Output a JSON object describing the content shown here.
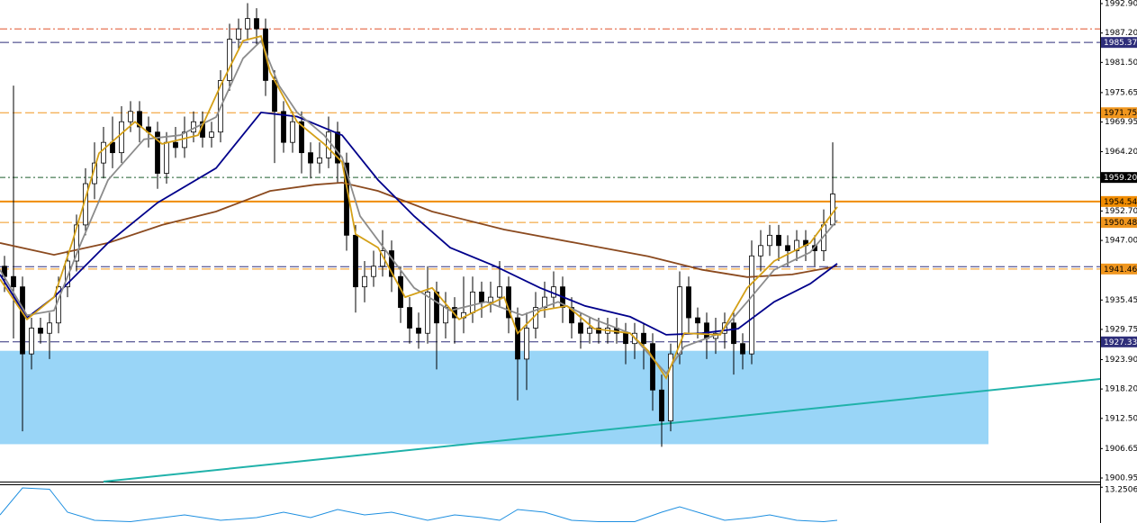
{
  "chart_data": {
    "type": "candlestick",
    "xlim": [
      -0.5,
      121.7
    ],
    "ylim": [
      1900.25,
      1993.6
    ],
    "yticks": [
      {
        "value": 1992.9,
        "label": "1992.90"
      },
      {
        "value": 1987.2,
        "label": "1987.20"
      },
      {
        "value": 1981.5,
        "label": "1981.50"
      },
      {
        "value": 1975.65,
        "label": "1975.65"
      },
      {
        "value": 1969.95,
        "label": "1969.95"
      },
      {
        "value": 1964.2,
        "label": "1964.20"
      },
      {
        "value": 1952.7,
        "label": "1952.70"
      },
      {
        "value": 1947,
        "label": "1947.00"
      },
      {
        "value": 1935.45,
        "label": "1935.45"
      },
      {
        "value": 1929.75,
        "label": "1929.75"
      },
      {
        "value": 1923.9,
        "label": "1923.90"
      },
      {
        "value": 1918.2,
        "label": "1918.20"
      },
      {
        "value": 1912.5,
        "label": "1912.50"
      },
      {
        "value": 1906.65,
        "label": "1906.65"
      },
      {
        "value": 1900.95,
        "label": "1900.95"
      }
    ],
    "up_color": "#ffffff",
    "down_color": "#000000",
    "open": [
      1942,
      1940,
      1938,
      1925,
      1930,
      1929,
      1931,
      1938,
      1943,
      1950,
      1958,
      1962,
      1966,
      1964,
      1970,
      1972,
      1969,
      1968,
      1960,
      1966,
      1965,
      1968,
      1970,
      1967,
      1968,
      1978,
      1986,
      1988,
      1990,
      1988,
      1978,
      1972,
      1966,
      1970,
      1964,
      1962,
      1963,
      1968,
      1962,
      1948,
      1938,
      1940,
      1942,
      1945,
      1940,
      1934,
      1930,
      1929,
      1937,
      1931,
      1934,
      1932,
      1933,
      1937,
      1935,
      1936,
      1938,
      1932,
      1924,
      1930,
      1934,
      1936,
      1938,
      1934,
      1931,
      1929,
      1930,
      1929,
      1930,
      1929,
      1927,
      1929,
      1927,
      1918,
      1912,
      1925,
      1938,
      1932,
      1931,
      1928,
      1929,
      1931,
      1927,
      1925,
      1944,
      1946,
      1948,
      1946,
      1945,
      1947,
      1946,
      1945,
      1950
    ],
    "high": [
      1944,
      1977,
      1940,
      1932,
      1932,
      1933,
      1940,
      1945,
      1952,
      1961,
      1966,
      1969,
      1971,
      1973,
      1974,
      1974,
      1971,
      1970,
      1968,
      1969,
      1971,
      1972,
      1972,
      1970,
      1980,
      1989,
      1990,
      1993,
      1992,
      1990,
      1980,
      1974,
      1972,
      1972,
      1966,
      1966,
      1971,
      1970,
      1964,
      1950,
      1943,
      1945,
      1949,
      1947,
      1942,
      1936,
      1933,
      1942,
      1939,
      1937,
      1936,
      1940,
      1940,
      1939,
      1939,
      1943,
      1940,
      1934,
      1933,
      1937,
      1939,
      1941,
      1940,
      1936,
      1933,
      1932,
      1932,
      1932,
      1932,
      1931,
      1931,
      1931,
      1929,
      1921,
      1927,
      1941,
      1940,
      1934,
      1933,
      1932,
      1933,
      1933,
      1929,
      1947,
      1949,
      1950,
      1950,
      1948,
      1949,
      1949,
      1948,
      1953,
      1966
    ],
    "low": [
      1937,
      1928,
      1910,
      1922,
      1927,
      1924,
      1929,
      1936,
      1941,
      1948,
      1955,
      1959,
      1961,
      1962,
      1968,
      1966,
      1965,
      1957,
      1958,
      1963,
      1963,
      1966,
      1965,
      1965,
      1966,
      1976,
      1984,
      1986,
      1985,
      1975,
      1962,
      1964,
      1964,
      1960,
      1959,
      1960,
      1961,
      1958,
      1945,
      1933,
      1935,
      1938,
      1940,
      1937,
      1931,
      1927,
      1926,
      1927,
      1922,
      1928,
      1927,
      1929,
      1931,
      1932,
      1933,
      1934,
      1929,
      1916,
      1918,
      1928,
      1932,
      1934,
      1931,
      1928,
      1926,
      1927,
      1927,
      1927,
      1927,
      1923,
      1924,
      1922,
      1914,
      1907,
      1910,
      1923,
      1929,
      1928,
      1924,
      1925,
      1926,
      1921,
      1922,
      1923,
      1941,
      1944,
      1943,
      1942,
      1943,
      1943,
      1942,
      1943,
      1950
    ],
    "close": [
      1940,
      1938,
      1925,
      1930,
      1929,
      1931,
      1938,
      1943,
      1950,
      1958,
      1962,
      1966,
      1964,
      1970,
      1972,
      1969,
      1968,
      1960,
      1966,
      1965,
      1968,
      1970,
      1967,
      1968,
      1978,
      1986,
      1988,
      1990,
      1988,
      1978,
      1972,
      1966,
      1970,
      1964,
      1962,
      1963,
      1968,
      1962,
      1948,
      1938,
      1940,
      1942,
      1945,
      1940,
      1934,
      1930,
      1929,
      1937,
      1931,
      1934,
      1932,
      1933,
      1937,
      1935,
      1936,
      1938,
      1932,
      1924,
      1930,
      1934,
      1936,
      1938,
      1934,
      1931,
      1929,
      1930,
      1929,
      1930,
      1929,
      1927,
      1929,
      1927,
      1918,
      1912,
      1925,
      1938,
      1932,
      1931,
      1928,
      1929,
      1931,
      1927,
      1925,
      1944,
      1946,
      1948,
      1946,
      1945,
      1947,
      1946,
      1945,
      1950,
      1956
    ],
    "series": [
      {
        "color": "#8b4a1f",
        "x": [
          -0.5,
          5.5,
          11.5,
          17.5,
          23.5,
          29.5,
          34.5,
          37.5,
          41.5,
          47.5,
          55.5,
          63.5,
          71.5,
          77.5,
          82.5,
          87.5,
          92.5
        ],
        "values": [
          1946.5,
          1944.2,
          1946.5,
          1950,
          1952.6,
          1956.6,
          1957.8,
          1958.2,
          1956.6,
          1952.6,
          1949.1,
          1946.5,
          1943.9,
          1941.3,
          1939.9,
          1940.4,
          1942
        ]
      },
      {
        "color": "#00008b",
        "x": [
          -0.5,
          2.5,
          5.5,
          11.5,
          17,
          23.5,
          28.5,
          32.5,
          37.5,
          41.5,
          45.5,
          49.5,
          54.5,
          59.5,
          64.5,
          69.5,
          73.5,
          77.5,
          81.5,
          85.5,
          89.5,
          92.5
        ],
        "values": [
          1940.4,
          1932,
          1936,
          1946.5,
          1954.3,
          1961,
          1971.8,
          1971,
          1967.4,
          1958.7,
          1951.7,
          1945.6,
          1942,
          1937.8,
          1934.3,
          1932.2,
          1928.7,
          1929,
          1929.9,
          1935.1,
          1938.6,
          1942.5
        ]
      },
      {
        "color": "#8c8c8c",
        "x": [
          -0.5,
          2.5,
          5.5,
          8.5,
          11.5,
          15.5,
          19.5,
          23.5,
          26.5,
          28.5,
          30.5,
          32.5,
          35.5,
          37.5,
          39.5,
          42.5,
          45.5,
          49.5,
          53.5,
          57.5,
          61.5,
          65.5,
          69.5,
          73.5,
          75.5,
          79.5,
          82.5,
          85.5,
          89.5,
          92.5
        ],
        "values": [
          1941.3,
          1932.5,
          1933.4,
          1946.5,
          1958.7,
          1966.6,
          1967.4,
          1970.9,
          1982.3,
          1985.7,
          1977,
          1971.8,
          1967.4,
          1963.1,
          1951.7,
          1944.7,
          1937.8,
          1933.4,
          1935.1,
          1932.5,
          1935.1,
          1931.7,
          1929,
          1921.2,
          1926.4,
          1929,
          1935.1,
          1941.3,
          1944.7,
          1950.9
        ]
      },
      {
        "color": "#d4a017",
        "x": [
          -0.5,
          2.5,
          5.5,
          7.5,
          10.5,
          14.5,
          17.5,
          21.5,
          24,
          26.5,
          28.5,
          29.5,
          32.5,
          35.5,
          37.5,
          39,
          41.5,
          44.5,
          47.5,
          50.5,
          55.5,
          57,
          59.5,
          62.5,
          65.5,
          69.5,
          71.5,
          73.5,
          75.5,
          79.5,
          82.5,
          85.5,
          89.5,
          92.5
        ],
        "values": [
          1939.5,
          1931.7,
          1936,
          1946.5,
          1963.9,
          1970,
          1965.7,
          1967.4,
          1977,
          1985.7,
          1986.6,
          1979.6,
          1970,
          1965.7,
          1962.2,
          1948.2,
          1945.6,
          1936,
          1937.8,
          1931.7,
          1936,
          1929,
          1933.4,
          1934.3,
          1929.9,
          1929,
          1925.6,
          1920.3,
          1929,
          1928.7,
          1937.8,
          1943,
          1946.5,
          1953.5
        ]
      }
    ],
    "levels": [
      {
        "value": 1988,
        "color": "#e0502a",
        "dash": "8,3,2,3",
        "show_label": false
      },
      {
        "value": 1985.37,
        "color": "#2e2e7a",
        "dash": "10,4",
        "show_label": true,
        "label_color": "#ffffff"
      },
      {
        "value": 1971.75,
        "color": "#f0961e",
        "dash": "10,4",
        "show_label": true,
        "label_color": "#000000"
      },
      {
        "value": 1959.2,
        "label": "1959.20",
        "color": "#1f5f2f",
        "dash": "6,3,2,3",
        "box_color": "#000000",
        "show_label": true,
        "label_color": "#ffffff"
      },
      {
        "value": 1954.54,
        "color": "#f08c00",
        "dash": "none",
        "width": 2,
        "show_label": true,
        "label_color": "#000000"
      },
      {
        "value": 1950.48,
        "color": "#f0961e",
        "dash": "10,4",
        "show_label": true,
        "label_color": "#000000"
      },
      {
        "value": 1941.9,
        "color": "#2e2e7a",
        "dash": "10,4",
        "show_label": false
      },
      {
        "value": 1941.46,
        "color": "#f0961e",
        "dash": "10,4",
        "show_label": true,
        "label_color": "#000000"
      },
      {
        "value": 1927.33,
        "color": "#2e2e7a",
        "dash": "10,4",
        "show_label": true,
        "label_color": "#ffffff"
      }
    ],
    "zone": {
      "x": [
        -0.5,
        109.3
      ],
      "y": [
        1907.5,
        1925.6
      ],
      "color": "#99d5f7"
    },
    "trendline": {
      "x": [
        11,
        121.7
      ],
      "values": [
        1900.25,
        1920.15
      ],
      "color": "#20b2aa"
    },
    "indicator": {
      "color": "#1e8fe0",
      "ylim": [
        0,
        14
      ],
      "yticks": [
        {
          "value": 13.2506,
          "label": "13.2506"
        }
      ],
      "x": [
        -0.5,
        2,
        5,
        7,
        10,
        14,
        20,
        24,
        28,
        31,
        34,
        37,
        40,
        43,
        47,
        50,
        53,
        55,
        57,
        60,
        63,
        66,
        70,
        73,
        75,
        78,
        80,
        83,
        85,
        88,
        91,
        92.5
      ],
      "values": [
        3,
        13,
        12.5,
        4,
        1,
        0.5,
        3,
        1,
        2,
        4,
        2,
        5,
        3,
        4,
        1,
        3,
        2,
        1,
        5,
        4,
        1,
        0.5,
        0.5,
        4,
        6,
        3,
        1,
        2,
        3,
        1,
        0.5,
        1
      ]
    }
  }
}
